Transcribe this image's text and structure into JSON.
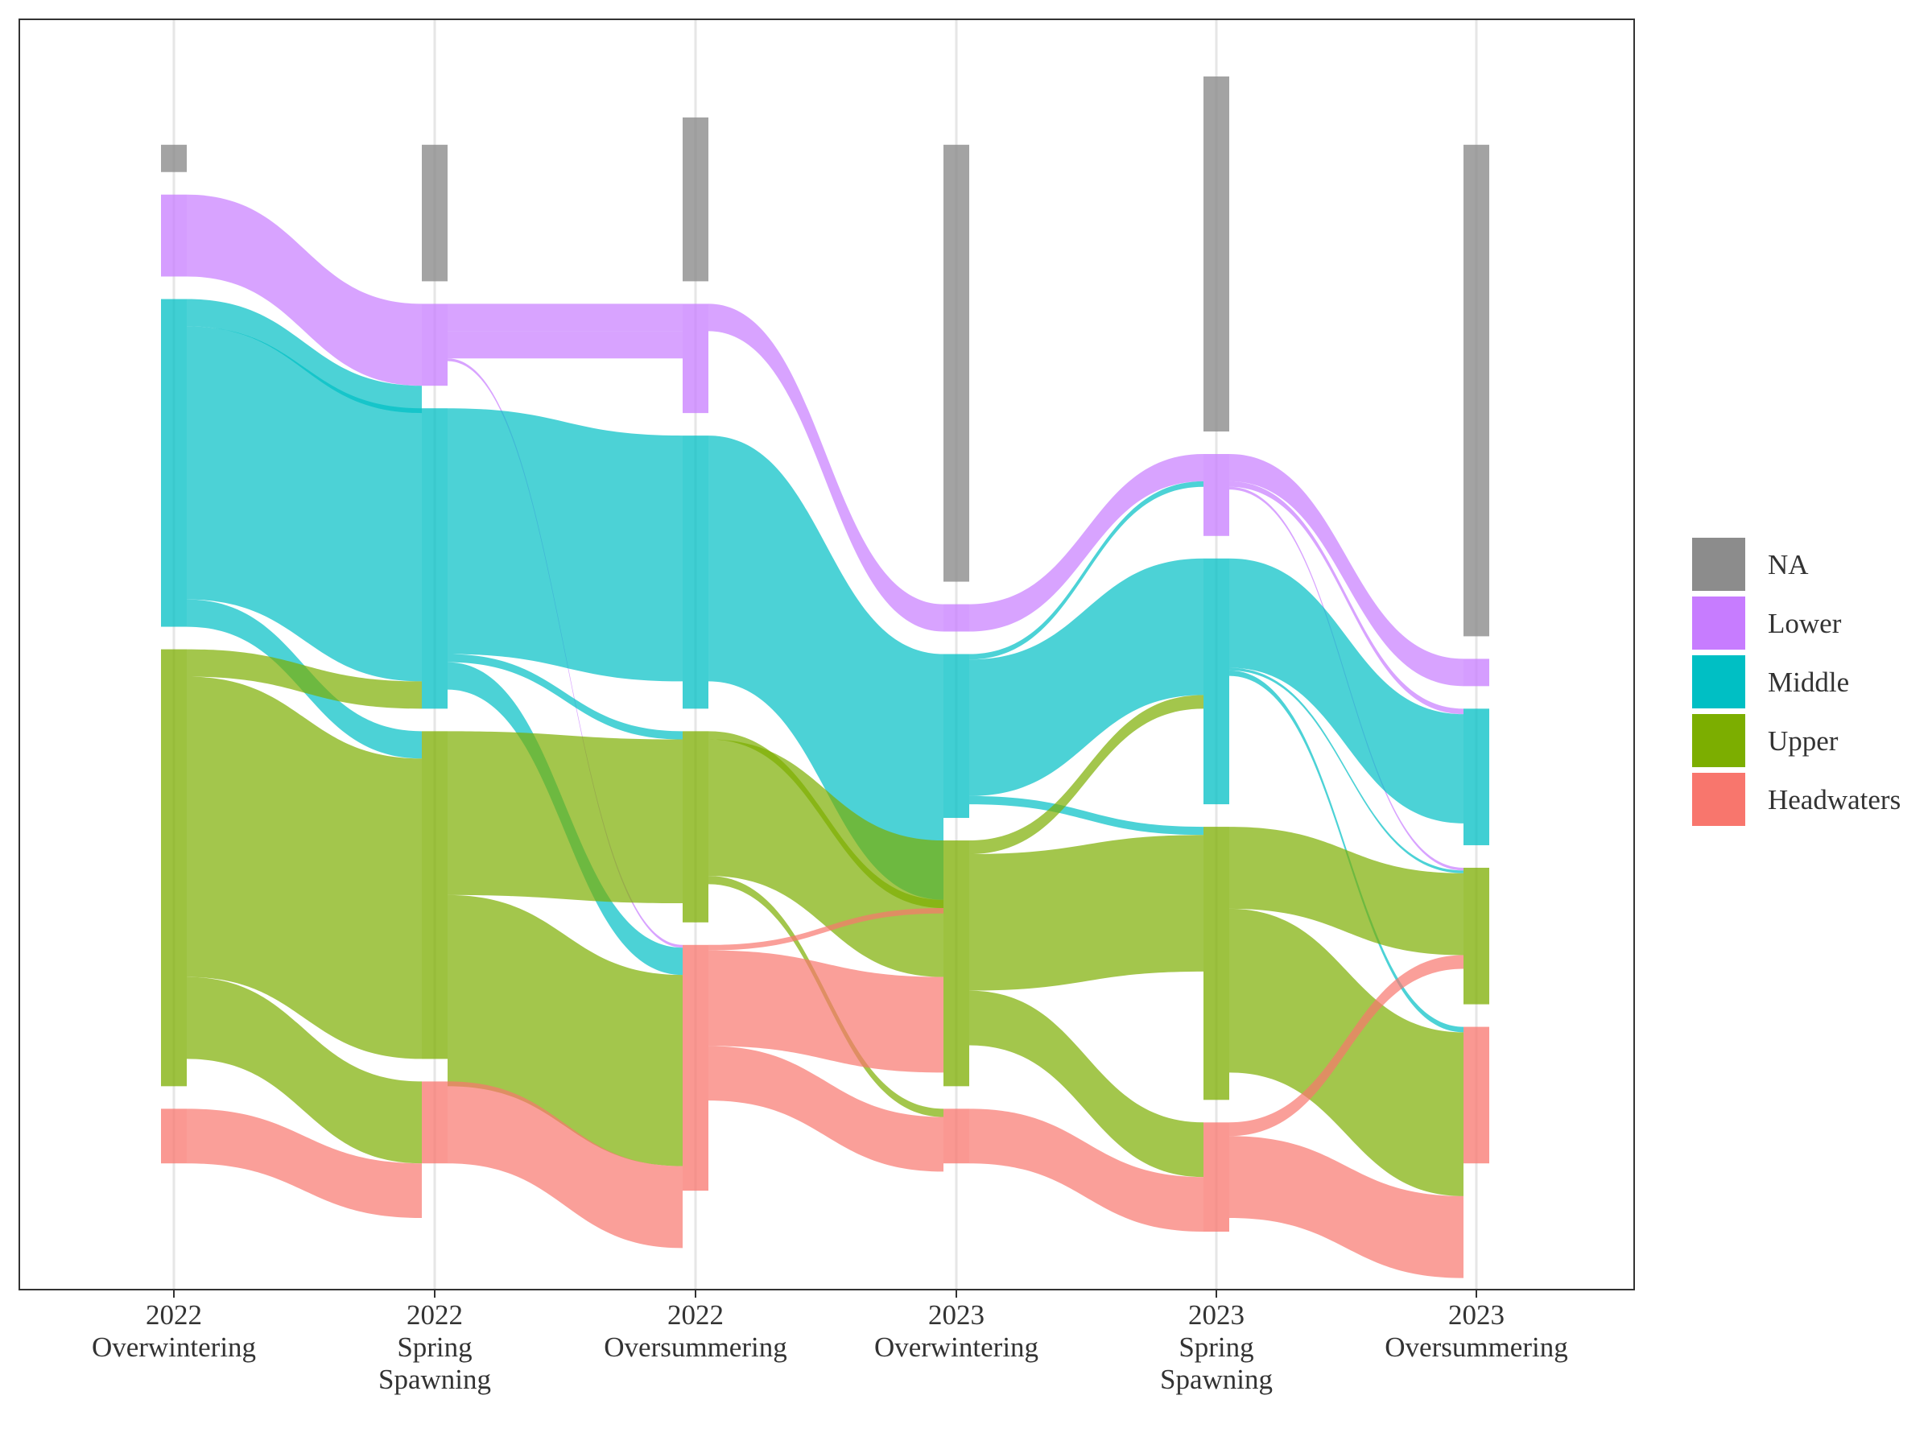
{
  "chart_data": {
    "type": "alluvial",
    "title": "",
    "xlabel": "",
    "ylabel": "",
    "grid": true,
    "legend_position": "right",
    "stages": [
      {
        "year": "2022",
        "season": "Overwintering"
      },
      {
        "year": "2022",
        "season": "Spring\nSpawning"
      },
      {
        "year": "2022",
        "season": "Oversummering"
      },
      {
        "year": "2023",
        "season": "Overwintering"
      },
      {
        "year": "2023",
        "season": "Spring\nSpawning"
      },
      {
        "year": "2023",
        "season": "Oversummering"
      }
    ],
    "categories": [
      "NA",
      "Lower",
      "Middle",
      "Upper",
      "Headwaters"
    ],
    "colors": {
      "NA": "#8c8c8c",
      "Lower": "#c77cff",
      "Middle": "#00bfc4",
      "Upper": "#7cae00",
      "Headwaters": "#f8766d"
    },
    "stage_counts": [
      {
        "NA": 1,
        "Lower": 3,
        "Middle": 12,
        "Upper": 16,
        "Headwaters": 2
      },
      {
        "NA": 5,
        "Lower": 3,
        "Middle": 11,
        "Upper": 12,
        "Headwaters": 3
      },
      {
        "NA": 6,
        "Lower": 4,
        "Middle": 10,
        "Upper": 7,
        "Headwaters": 9
      },
      {
        "NA": 16,
        "Lower": 1,
        "Middle": 6,
        "Upper": 9,
        "Headwaters": 2
      },
      {
        "NA": 13,
        "Lower": 3,
        "Middle": 9,
        "Upper": 10,
        "Headwaters": 4
      },
      {
        "NA": 18,
        "Lower": 1,
        "Middle": 5,
        "Upper": 5,
        "Headwaters": 5
      }
    ],
    "flows": [
      [
        {
          "from": "Lower",
          "to": "Lower",
          "value": 3
        },
        {
          "from": "Middle",
          "to": "Lower",
          "value": 1
        },
        {
          "from": "Middle",
          "to": "Middle",
          "value": 10
        },
        {
          "from": "Middle",
          "to": "Upper",
          "value": 1
        },
        {
          "from": "Upper",
          "to": "Middle",
          "value": 1
        },
        {
          "from": "Upper",
          "to": "Upper",
          "value": 11
        },
        {
          "from": "Upper",
          "to": "Headwaters",
          "value": 3
        },
        {
          "from": "Headwaters",
          "to": "Headwaters",
          "value": 2
        }
      ],
      [
        {
          "from": "Lower",
          "to": "Lower",
          "value": 1
        },
        {
          "from": "Lower",
          "to": "Lower",
          "value": 1
        },
        {
          "from": "Lower",
          "to": "Headwaters",
          "value": 0.1
        },
        {
          "from": "Middle",
          "to": "Middle",
          "value": 9
        },
        {
          "from": "Middle",
          "to": "Upper",
          "value": 0.3
        },
        {
          "from": "Middle",
          "to": "Headwaters",
          "value": 1
        },
        {
          "from": "Upper",
          "to": "Upper",
          "value": 6
        },
        {
          "from": "Upper",
          "to": "Headwaters",
          "value": 7
        },
        {
          "from": "Headwaters",
          "to": "Headwaters",
          "value": 3
        }
      ],
      [
        {
          "from": "Lower",
          "to": "Lower",
          "value": 1
        },
        {
          "from": "Middle",
          "to": "Middle",
          "value": 9
        },
        {
          "from": "Upper",
          "to": "Middle",
          "value": 0.3
        },
        {
          "from": "Upper",
          "to": "Upper",
          "value": 5
        },
        {
          "from": "Upper",
          "to": "Headwaters",
          "value": 0.3
        },
        {
          "from": "Headwaters",
          "to": "Middle",
          "value": 0.2
        },
        {
          "from": "Headwaters",
          "to": "Upper",
          "value": 3.5
        },
        {
          "from": "Headwaters",
          "to": "Headwaters",
          "value": 2
        }
      ],
      [
        {
          "from": "Lower",
          "to": "Lower",
          "value": 1
        },
        {
          "from": "Middle",
          "to": "Lower",
          "value": 0.2
        },
        {
          "from": "Middle",
          "to": "Middle",
          "value": 5
        },
        {
          "from": "Middle",
          "to": "Upper",
          "value": 0.3
        },
        {
          "from": "Upper",
          "to": "Middle",
          "value": 0.5
        },
        {
          "from": "Upper",
          "to": "Upper",
          "value": 5
        },
        {
          "from": "Upper",
          "to": "Headwaters",
          "value": 2
        },
        {
          "from": "Headwaters",
          "to": "Headwaters",
          "value": 2
        }
      ],
      [
        {
          "from": "Lower",
          "to": "Lower",
          "value": 1
        },
        {
          "from": "Lower",
          "to": "Middle",
          "value": 0.2
        },
        {
          "from": "Lower",
          "to": "Upper",
          "value": 0.1
        },
        {
          "from": "Middle",
          "to": "Middle",
          "value": 4
        },
        {
          "from": "Middle",
          "to": "Upper",
          "value": 0.1
        },
        {
          "from": "Middle",
          "to": "Headwaters",
          "value": 0.2
        },
        {
          "from": "Upper",
          "to": "Upper",
          "value": 3
        },
        {
          "from": "Upper",
          "to": "Headwaters",
          "value": 6
        },
        {
          "from": "Headwaters",
          "to": "Upper",
          "value": 0.5
        },
        {
          "from": "Headwaters",
          "to": "Headwaters",
          "value": 3
        }
      ]
    ],
    "x_ticks": [
      {
        "year": "2022",
        "season": "Overwintering"
      },
      {
        "year": "2022",
        "season": "Spring\nSpawning"
      },
      {
        "year": "2022",
        "season": "Oversummering"
      },
      {
        "year": "2023",
        "season": "Overwintering"
      },
      {
        "year": "2023",
        "season": "Spring\nSpawning"
      },
      {
        "year": "2023",
        "season": "Oversummering"
      }
    ],
    "legend": [
      "NA",
      "Lower",
      "Middle",
      "Upper",
      "Headwaters"
    ]
  }
}
